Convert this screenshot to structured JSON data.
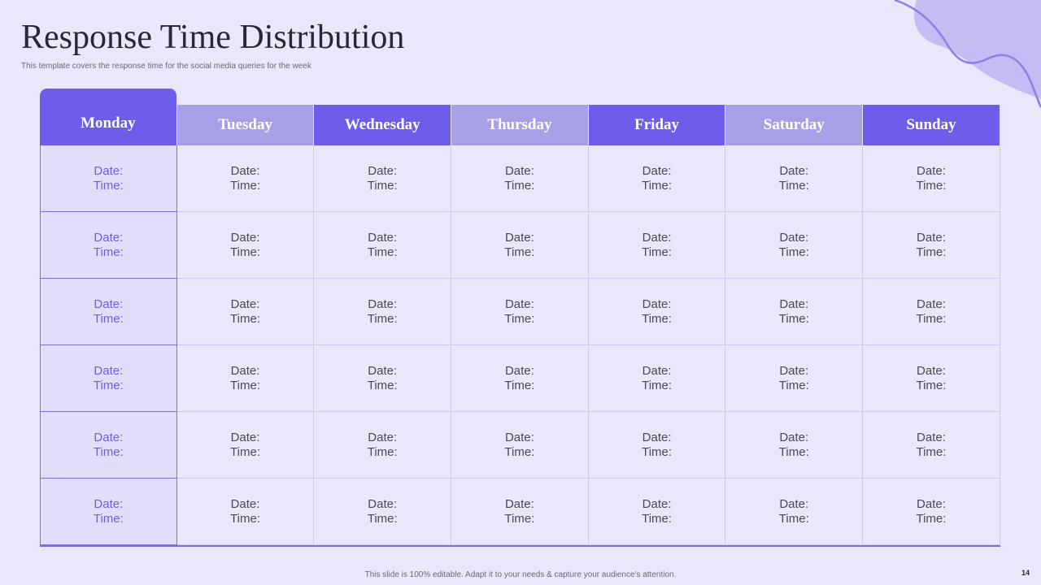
{
  "title": "Response Time Distribution",
  "subtitle": "This template covers the response time for the social media queries for the week",
  "days": [
    "Monday",
    "Tuesday",
    "Wednesday",
    "Thursday",
    "Friday",
    "Saturday",
    "Sunday"
  ],
  "cell_labels": {
    "date": "Date:",
    "time": "Time:"
  },
  "row_count": 6,
  "footer": "This slide is 100% editable. Adapt it to your needs & capture your audience's attention.",
  "page_number": "14",
  "colors": {
    "background": "#E9E7F9",
    "header_dark": "#6E5CEA",
    "header_light": "#A8A0E6",
    "accent_blob": "#C4BCF3",
    "accent_line": "#8F7EEA"
  }
}
